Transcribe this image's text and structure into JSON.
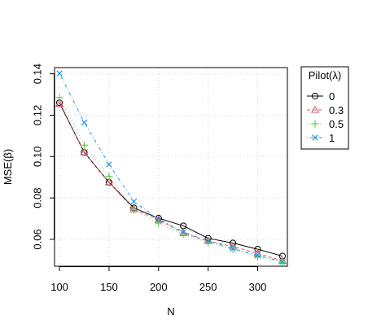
{
  "chart_data": {
    "type": "line",
    "xlabel": "N",
    "ylabel": "MSE(β)",
    "x": [
      100,
      125,
      150,
      175,
      200,
      225,
      250,
      275,
      300,
      325
    ],
    "xticks": [
      100,
      150,
      200,
      250,
      300
    ],
    "xtick_labels": [
      "100",
      "150",
      "200",
      "250",
      "300"
    ],
    "yticks": [
      0.06,
      0.08,
      0.1,
      0.12,
      0.14
    ],
    "ytick_labels": [
      "0.06",
      "0.08",
      "0.10",
      "0.12",
      "0.14"
    ],
    "xlim": [
      95,
      330
    ],
    "ylim": [
      0.047,
      0.143
    ],
    "grid": true,
    "legend": {
      "title": "Pilot(λ)",
      "placement": "right",
      "entries": [
        "0",
        "0.3",
        "0.5",
        "1"
      ]
    },
    "series": [
      {
        "name": "0",
        "color": "#000000",
        "marker": "circle",
        "line": "solid",
        "values": [
          0.126,
          0.102,
          0.0875,
          0.0752,
          0.0702,
          0.0665,
          0.0605,
          0.0582,
          0.0552,
          0.0519
        ]
      },
      {
        "name": "0.3",
        "color": "#DF536B",
        "marker": "triangle",
        "line": "dashed",
        "values": [
          0.1255,
          0.102,
          0.0875,
          0.0745,
          0.0695,
          0.063,
          0.0592,
          0.0565,
          0.0532,
          0.0496
        ]
      },
      {
        "name": "0.5",
        "color": "#61D04F",
        "marker": "plus",
        "line": "dotted",
        "values": [
          0.1285,
          0.1055,
          0.0905,
          0.0742,
          0.0678,
          0.0625,
          0.0585,
          0.0552,
          0.0515,
          0.0488
        ]
      },
      {
        "name": "1",
        "color": "#2297E6",
        "marker": "cross",
        "line": "dotdash",
        "values": [
          0.1402,
          0.1165,
          0.0962,
          0.0783,
          0.0698,
          0.0635,
          0.0592,
          0.0555,
          0.0522,
          0.0492
        ]
      }
    ]
  }
}
